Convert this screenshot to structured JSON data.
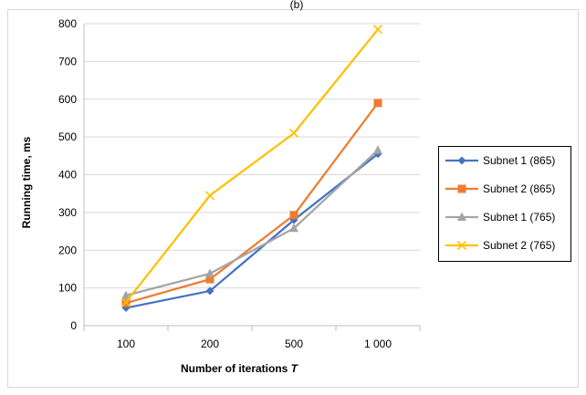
{
  "page": {
    "top_label": "(b)"
  },
  "chart_data": {
    "type": "line",
    "title": "",
    "xlabel_text": "Number of iterations ",
    "xlabel_var": "T",
    "ylabel": "Running time, ms",
    "categories": [
      "100",
      "200",
      "500",
      "1 000"
    ],
    "ylim": [
      0,
      800
    ],
    "yticks": [
      0,
      100,
      200,
      300,
      400,
      500,
      600,
      700,
      800
    ],
    "grid": true,
    "legend_position": "right",
    "series": [
      {
        "name": "Subnet 1 (865)",
        "values": [
          47,
          92,
          280,
          455
        ],
        "color": "#4472C4",
        "marker": "diamond"
      },
      {
        "name": "Subnet 2 (865)",
        "values": [
          60,
          123,
          293,
          590
        ],
        "color": "#ED7D31",
        "marker": "square"
      },
      {
        "name": "Subnet 1 (765)",
        "values": [
          80,
          138,
          258,
          465
        ],
        "color": "#A5A5A5",
        "marker": "triangle"
      },
      {
        "name": "Subnet 2 (765)",
        "values": [
          62,
          345,
          510,
          785
        ],
        "color": "#FFC000",
        "marker": "x"
      }
    ]
  }
}
